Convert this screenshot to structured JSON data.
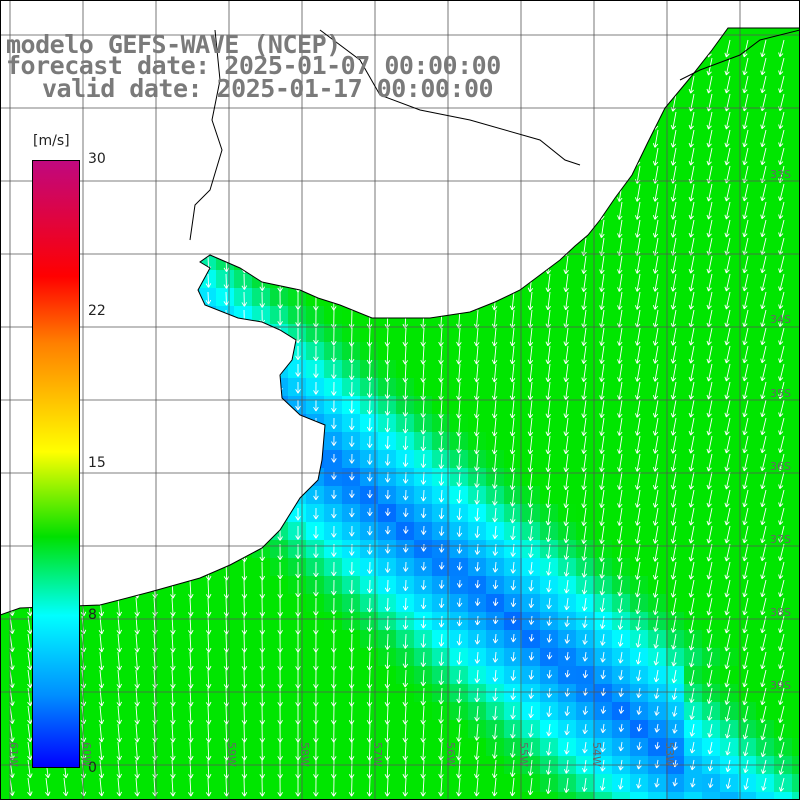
{
  "title": {
    "model": "modelo GEFS-WAVE (NCEP)",
    "forecast": "forecast date: 2025-01-07 00:00:00",
    "valid": "valid date: 2025-01-17 00:00:00"
  },
  "colorbar": {
    "unit": "[m/s]",
    "ticks": [
      "30",
      "22",
      "15",
      "8",
      "0"
    ],
    "colors": [
      "#c0087f",
      "#ff0000",
      "#ff7f00",
      "#ffff00",
      "#00e000",
      "#00ffff",
      "#0090ff",
      "#0000ff"
    ]
  },
  "lon_labels": [
    "61W",
    "60W",
    "59W",
    "58W",
    "57W",
    "56W",
    "55W",
    "54W",
    "53W"
  ],
  "lat_labels": [
    "33S",
    "34S",
    "35S",
    "36S",
    "37S",
    "38S",
    "39S"
  ],
  "colors": {
    "land": "#ffffff",
    "coast": "#000000",
    "grid": "#555555",
    "arrow": "#ffffff"
  }
}
